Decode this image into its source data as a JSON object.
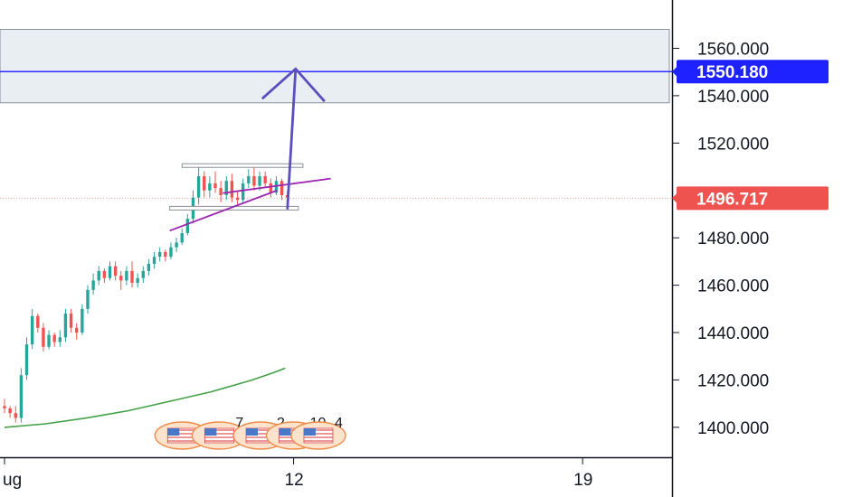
{
  "chart_data": {
    "type": "candlestick",
    "yrange": [
      1395,
      1572
    ],
    "y_ticks": [
      "1560.000",
      "1540.000",
      "1520.000",
      "1480.000",
      "1460.000",
      "1440.000",
      "1420.000",
      "1400.000"
    ],
    "y_tick_values": [
      1560,
      1540,
      1520,
      1480,
      1460,
      1440,
      1420,
      1400
    ],
    "x_ticks": [
      {
        "label": "ug",
        "day": 5
      },
      {
        "label": "12",
        "day": 12
      },
      {
        "label": "19",
        "day": 19
      }
    ],
    "xrange": [
      5,
      21.1
    ],
    "price_badges": [
      {
        "label": "1550.180",
        "value": 1550.18,
        "color": "#1e22ff"
      },
      {
        "label": "1496.717",
        "value": 1496.717,
        "color": "#ef5350"
      }
    ],
    "target_zone": {
      "from": 1537,
      "to": 1568
    },
    "target_line": 1550.18,
    "current_price_line": 1496.717,
    "consolidation_box": {
      "top": 1510.5,
      "bottom": 1492.5
    },
    "support_trendline": {
      "from": [
        9.0,
        1483
      ],
      "to": [
        11.6,
        1500
      ]
    },
    "wedge_line": {
      "from": [
        11.6,
        1500
      ],
      "to": [
        12.9,
        1505
      ]
    },
    "arrow": {
      "from": [
        11.85,
        1492
      ],
      "to": [
        12.05,
        1550.18
      ]
    },
    "moving_average": [
      [
        5.0,
        1400
      ],
      [
        6.0,
        1401.5
      ],
      [
        7.0,
        1404
      ],
      [
        8.0,
        1407
      ],
      [
        9.0,
        1411
      ],
      [
        10.0,
        1415
      ],
      [
        11.0,
        1420
      ],
      [
        11.5,
        1423
      ],
      [
        11.8,
        1425
      ]
    ],
    "candles": [
      [
        1409,
        1412,
        1406,
        1408
      ],
      [
        1408,
        1409,
        1404,
        1406
      ],
      [
        1406,
        1409,
        1402,
        1404
      ],
      [
        1404,
        1425,
        1402,
        1422
      ],
      [
        1422,
        1438,
        1420,
        1435
      ],
      [
        1435,
        1450,
        1433,
        1447
      ],
      [
        1447,
        1448,
        1440,
        1442
      ],
      [
        1442,
        1444,
        1432,
        1434
      ],
      [
        1434,
        1441,
        1433,
        1439
      ],
      [
        1439,
        1440,
        1434,
        1436
      ],
      [
        1436,
        1441,
        1434,
        1438
      ],
      [
        1438,
        1450,
        1436,
        1448
      ],
      [
        1448,
        1450,
        1440,
        1442
      ],
      [
        1442,
        1444,
        1437,
        1440
      ],
      [
        1440,
        1452,
        1439,
        1450
      ],
      [
        1450,
        1460,
        1448,
        1458
      ],
      [
        1458,
        1465,
        1456,
        1462
      ],
      [
        1462,
        1468,
        1460,
        1466
      ],
      [
        1466,
        1467,
        1461,
        1463
      ],
      [
        1463,
        1470,
        1462,
        1468
      ],
      [
        1468,
        1470,
        1462,
        1464
      ],
      [
        1464,
        1466,
        1458,
        1462
      ],
      [
        1462,
        1468,
        1460,
        1466
      ],
      [
        1466,
        1470,
        1459,
        1461
      ],
      [
        1461,
        1465,
        1459,
        1463
      ],
      [
        1463,
        1468,
        1461,
        1466
      ],
      [
        1466,
        1471,
        1464,
        1469
      ],
      [
        1469,
        1474,
        1467,
        1472
      ],
      [
        1472,
        1476,
        1470,
        1474
      ],
      [
        1474,
        1475,
        1470,
        1472
      ],
      [
        1472,
        1478,
        1471,
        1476
      ],
      [
        1476,
        1480,
        1474,
        1478
      ],
      [
        1478,
        1484,
        1477,
        1482
      ],
      [
        1482,
        1490,
        1481,
        1488
      ],
      [
        1488,
        1500,
        1486,
        1497
      ],
      [
        1497,
        1510,
        1494,
        1506
      ],
      [
        1506,
        1508,
        1497,
        1500
      ],
      [
        1500,
        1506,
        1497,
        1503
      ],
      [
        1503,
        1508,
        1499,
        1501
      ],
      [
        1501,
        1504,
        1495,
        1498
      ],
      [
        1498,
        1506,
        1496,
        1504
      ],
      [
        1504,
        1507,
        1495,
        1497
      ],
      [
        1497,
        1500,
        1494,
        1496
      ],
      [
        1496,
        1505,
        1495,
        1503
      ],
      [
        1503,
        1509,
        1501,
        1506
      ],
      [
        1506,
        1510,
        1500,
        1502
      ],
      [
        1502,
        1508,
        1500,
        1506
      ],
      [
        1506,
        1508,
        1501,
        1503
      ],
      [
        1503,
        1505,
        1497,
        1499
      ],
      [
        1499,
        1506,
        1498,
        1504
      ],
      [
        1504,
        1505,
        1496,
        1498
      ],
      [
        1498,
        1500,
        1494,
        1497
      ]
    ],
    "candle_x_range": [
      5.0,
      11.85
    ],
    "events": [
      {
        "day": 9.3,
        "label": ""
      },
      {
        "day": 10.2,
        "label": "7"
      },
      {
        "day": 11.2,
        "label": "2"
      },
      {
        "day": 12.0,
        "label": "10"
      },
      {
        "day": 12.6,
        "label": "4"
      }
    ],
    "colors": {
      "up": "#26a69a",
      "down": "#ef5350",
      "target_line": "#2a2aff",
      "arrow": "#5b4fc0",
      "trendline": "#9c27b0",
      "moving_average": "#43a047",
      "zone_fill": "#e8eef1",
      "box_stroke": "#8a8f98",
      "axis": "#131722"
    }
  }
}
